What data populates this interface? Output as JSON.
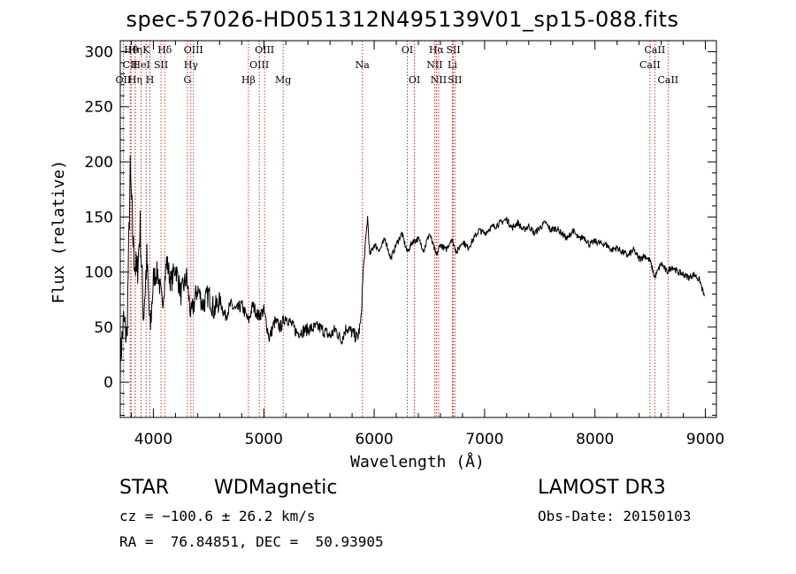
{
  "title": "spec-57026-HD051312N495139V01_sp15-088.fits",
  "chart_data": {
    "type": "line",
    "title": "spec-57026-HD051312N495139V01_sp15-088.fits",
    "xlabel": "Wavelength (Å)",
    "ylabel": "Flux (relative)",
    "xlim": [
      3700,
      9100
    ],
    "ylim": [
      -32,
      310
    ],
    "xticks": [
      "4000",
      "5000",
      "6000",
      "7000",
      "8000",
      "9000"
    ],
    "yticks": [
      "0",
      "50",
      "100",
      "150",
      "200",
      "250",
      "300"
    ],
    "series": [
      {
        "name": "flux",
        "x": [
          3700,
          3730,
          3760,
          3790,
          3820,
          3850,
          3880,
          3910,
          3940,
          3970,
          4000,
          4040,
          4080,
          4120,
          4160,
          4200,
          4250,
          4300,
          4340,
          4400,
          4450,
          4500,
          4550,
          4600,
          4650,
          4700,
          4750,
          4800,
          4861,
          4900,
          4950,
          5000,
          5050,
          5100,
          5150,
          5200,
          5300,
          5400,
          5500,
          5600,
          5650,
          5700,
          5750,
          5800,
          5850,
          5880,
          5900,
          5920,
          5940,
          5960,
          6000,
          6050,
          6100,
          6150,
          6200,
          6250,
          6300,
          6350,
          6400,
          6450,
          6500,
          6563,
          6600,
          6650,
          6700,
          6750,
          6800,
          6850,
          6900,
          6950,
          7000,
          7050,
          7100,
          7150,
          7200,
          7250,
          7300,
          7350,
          7400,
          7450,
          7500,
          7550,
          7600,
          7650,
          7700,
          7750,
          7800,
          7850,
          7900,
          7950,
          8000,
          8050,
          8100,
          8150,
          8200,
          8250,
          8300,
          8350,
          8400,
          8450,
          8500,
          8542,
          8600,
          8650,
          8700,
          8750,
          8800,
          8850,
          8900,
          8950,
          8990
        ],
        "y": [
          20,
          55,
          40,
          190,
          120,
          95,
          140,
          60,
          110,
          45,
          95,
          100,
          70,
          110,
          90,
          105,
          80,
          95,
          60,
          85,
          70,
          80,
          65,
          75,
          60,
          70,
          65,
          70,
          55,
          70,
          60,
          65,
          40,
          55,
          50,
          60,
          45,
          48,
          50,
          42,
          48,
          38,
          50,
          45,
          40,
          55,
          100,
          125,
          150,
          115,
          125,
          120,
          130,
          112,
          125,
          135,
          118,
          128,
          130,
          120,
          135,
          115,
          125,
          120,
          130,
          118,
          128,
          122,
          130,
          138,
          135,
          140,
          142,
          145,
          148,
          140,
          145,
          138,
          142,
          135,
          140,
          145,
          138,
          140,
          135,
          130,
          138,
          130,
          132,
          125,
          128,
          126,
          125,
          120,
          122,
          118,
          115,
          120,
          112,
          115,
          110,
          95,
          108,
          100,
          105,
          100,
          98,
          95,
          98,
          92,
          78
        ]
      }
    ],
    "lines": [
      {
        "label": "Hθ",
        "wl": 3798,
        "row": 0
      },
      {
        "label": "CII",
        "wl": 3790,
        "row": 1
      },
      {
        "label": "OII",
        "wl": 3727,
        "row": 2
      },
      {
        "label": "Hη",
        "wl": 3835,
        "row": 0
      },
      {
        "label": "HeI",
        "wl": 3889,
        "row": 1
      },
      {
        "label": "Hη",
        "wl": 3835,
        "row": 2
      },
      {
        "label": "K",
        "wl": 3934,
        "row": 0
      },
      {
        "label": "SII",
        "wl": 4069,
        "row": 1
      },
      {
        "label": "H",
        "wl": 3969,
        "row": 2
      },
      {
        "label": "Hδ",
        "wl": 4102,
        "row": 0
      },
      {
        "label": "OIII",
        "wl": 4363,
        "row": 0
      },
      {
        "label": "Hγ",
        "wl": 4340,
        "row": 1
      },
      {
        "label": "G",
        "wl": 4308,
        "row": 2
      },
      {
        "label": "OIII",
        "wl": 5007,
        "row": 0
      },
      {
        "label": "OIII",
        "wl": 4959,
        "row": 1
      },
      {
        "label": "Hβ",
        "wl": 4861,
        "row": 2
      },
      {
        "label": "Mg",
        "wl": 5175,
        "row": 2
      },
      {
        "label": "Na",
        "wl": 5893,
        "row": 1
      },
      {
        "label": "OI",
        "wl": 6300,
        "row": 0
      },
      {
        "label": "OI",
        "wl": 6364,
        "row": 2
      },
      {
        "label": "Hα",
        "wl": 6563,
        "row": 0
      },
      {
        "label": "NII",
        "wl": 6548,
        "row": 1
      },
      {
        "label": "NII",
        "wl": 6584,
        "row": 2
      },
      {
        "label": "SII",
        "wl": 6717,
        "row": 0
      },
      {
        "label": "Li",
        "wl": 6708,
        "row": 1
      },
      {
        "label": "SII",
        "wl": 6731,
        "row": 2
      },
      {
        "label": "CaII",
        "wl": 8542,
        "row": 0
      },
      {
        "label": "CaII",
        "wl": 8498,
        "row": 1
      },
      {
        "label": "CaII",
        "wl": 8662,
        "row": 2
      }
    ]
  },
  "info": {
    "class_label": "STAR",
    "subclass": "WDMagnetic",
    "survey": "LAMOST DR3",
    "cz": "cz = −100.6 ± 26.2 km/s",
    "obs_date": "Obs-Date: 20150103",
    "radec": "RA =  76.84851, DEC =  50.93905"
  },
  "colors": {
    "axis": "#000000",
    "line_marker": "#cc0000",
    "spectrum": "#000000"
  }
}
